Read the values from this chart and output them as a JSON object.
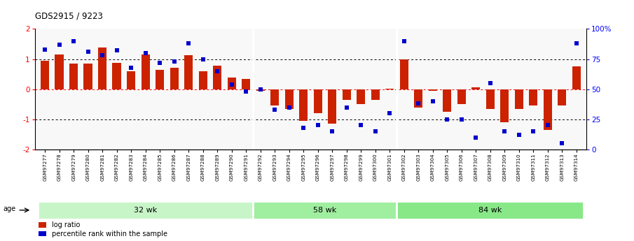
{
  "title": "GDS2915 / 9223",
  "samples": [
    "GSM97277",
    "GSM97278",
    "GSM97279",
    "GSM97280",
    "GSM97281",
    "GSM97282",
    "GSM97283",
    "GSM97284",
    "GSM97285",
    "GSM97286",
    "GSM97287",
    "GSM97288",
    "GSM97289",
    "GSM97290",
    "GSM97291",
    "GSM97292",
    "GSM97293",
    "GSM97294",
    "GSM97295",
    "GSM97296",
    "GSM97297",
    "GSM97298",
    "GSM97299",
    "GSM97300",
    "GSM97301",
    "GSM97302",
    "GSM97303",
    "GSM97304",
    "GSM97305",
    "GSM97306",
    "GSM97307",
    "GSM97308",
    "GSM97309",
    "GSM97310",
    "GSM97311",
    "GSM97312",
    "GSM97313",
    "GSM97314"
  ],
  "log_ratio": [
    0.95,
    1.15,
    0.85,
    0.85,
    1.38,
    0.88,
    0.6,
    1.15,
    0.65,
    0.72,
    1.12,
    0.6,
    0.77,
    0.38,
    0.35,
    -0.05,
    -0.55,
    -0.65,
    -1.05,
    -0.8,
    -1.15,
    -0.35,
    -0.5,
    -0.35,
    0.02,
    1.0,
    -0.6,
    -0.05,
    -0.75,
    -0.5,
    0.05,
    -0.65,
    -1.1,
    -0.65,
    -0.55,
    -1.35,
    -0.55,
    0.75
  ],
  "percentile": [
    83,
    87,
    90,
    81,
    78,
    82,
    68,
    80,
    72,
    73,
    88,
    75,
    65,
    54,
    48,
    50,
    33,
    35,
    18,
    20,
    15,
    35,
    20,
    15,
    30,
    90,
    38,
    40,
    25,
    25,
    10,
    55,
    15,
    12,
    15,
    20,
    5,
    88
  ],
  "group_labels": [
    "32 wk",
    "58 wk",
    "84 wk"
  ],
  "group_ranges": [
    [
      0,
      14
    ],
    [
      15,
      24
    ],
    [
      25,
      37
    ]
  ],
  "group_colors": [
    "#c8f5c8",
    "#a0eea0",
    "#88e888"
  ],
  "bar_color": "#cc2200",
  "dot_color": "#0000cc",
  "ylim": [
    -2,
    2
  ],
  "yticks_left": [
    -2,
    -1,
    0,
    1,
    2
  ],
  "yticks_right": [
    0,
    25,
    50,
    75,
    100
  ],
  "ytick_labels_right": [
    "0",
    "25",
    "50",
    "75",
    "100%"
  ],
  "legend_log_ratio": "log ratio",
  "legend_percentile": "percentile rank within the sample",
  "age_label": "age"
}
